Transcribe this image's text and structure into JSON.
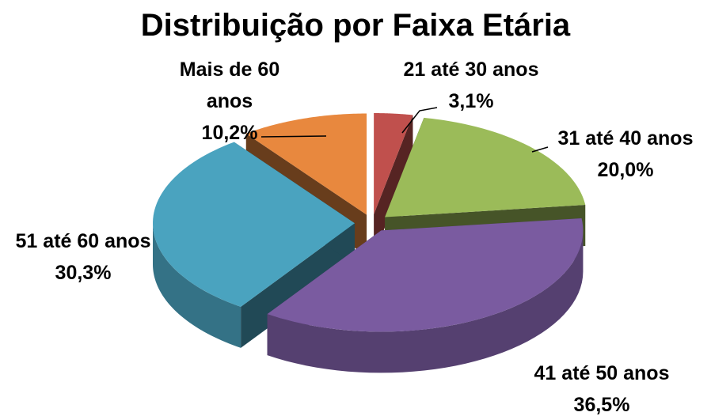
{
  "chart_data": {
    "type": "pie3d",
    "title": "Distribuição por Faixa Etária",
    "categories": [
      "21 até 30 anos",
      "31 até 40 anos",
      "41 até 50 anos",
      "51 até 60 anos",
      "Mais de 60 anos"
    ],
    "values": [
      3.1,
      20.0,
      36.5,
      30.3,
      10.2
    ],
    "value_labels": [
      "3,1%",
      "20,0%",
      "36,5%",
      "30,3%",
      "10,2%"
    ],
    "colors": [
      "#c0504d",
      "#9bbb59",
      "#7a5ba0",
      "#4aa3bf",
      "#e8883e"
    ]
  }
}
